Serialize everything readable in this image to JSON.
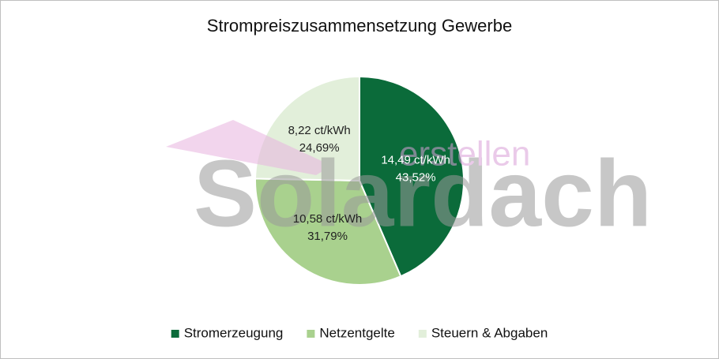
{
  "chart_data": {
    "type": "pie",
    "title": "Strompreiszusammensetzung Gewerbe",
    "categories": [
      "Stromerzeugung",
      "Netzentgelte",
      "Steuern & Abgaben"
    ],
    "values": [
      43.52,
      31.79,
      24.69
    ],
    "value_labels": [
      "43,52%",
      "31,79%",
      "24,69%"
    ],
    "amounts": [
      14.49,
      10.58,
      8.22
    ],
    "amount_labels": [
      "14,49 ct/kWh",
      "10,58 ct/kWh",
      "8,22 ct/kWh"
    ],
    "colors": [
      "#0b6b3a",
      "#a9d18e",
      "#e2efda"
    ],
    "label_colors": [
      "#ffffff",
      "#222222",
      "#222222"
    ],
    "legend": "bottom",
    "watermark": [
      "Solardach",
      "erstellen"
    ]
  }
}
